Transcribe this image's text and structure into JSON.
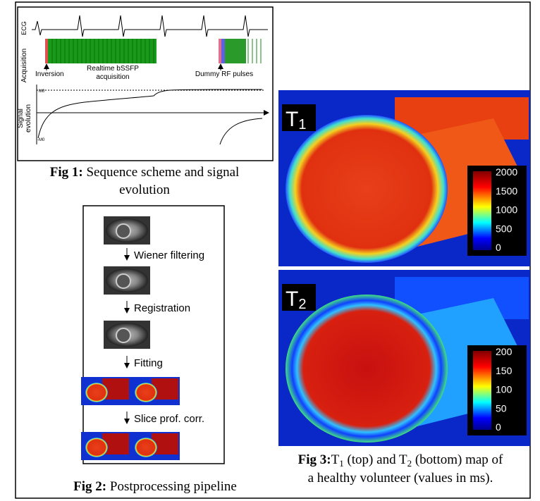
{
  "fig1": {
    "ecg_label": "ECG",
    "acquisition_label": "Acquisition",
    "signal_label": [
      "Signal",
      "evolution"
    ],
    "inversion": "Inversion",
    "acquisition_text": [
      "Realtime bSSFP",
      "acquisition"
    ],
    "dummy": "Dummy RF pulses",
    "m0": "M0",
    "neg_m0": "-M0",
    "caption": {
      "label": "Fig 1:",
      "lines": [
        "Sequence scheme and signal",
        "evolution"
      ]
    }
  },
  "fig2": {
    "steps": [
      "Wiener filtering",
      "Registration",
      "Fitting",
      "Slice prof. corr."
    ],
    "caption": {
      "label": "Fig 2:",
      "text": "Postprocessing pipeline"
    }
  },
  "fig3": {
    "t1_map": {
      "label": "T",
      "subscript": "1",
      "colorbar_ticks": [
        2000,
        1500,
        1000,
        500,
        0
      ]
    },
    "t2_map": {
      "label": "T",
      "subscript": "2",
      "colorbar_ticks": [
        200,
        150,
        100,
        50,
        0
      ]
    },
    "caption": {
      "label": "Fig 3:",
      "line1": [
        "T",
        "1",
        " (top) and T",
        "2",
        " (bottom) map of"
      ],
      "line2": "a healthy volunteer (values in ms)."
    }
  }
}
